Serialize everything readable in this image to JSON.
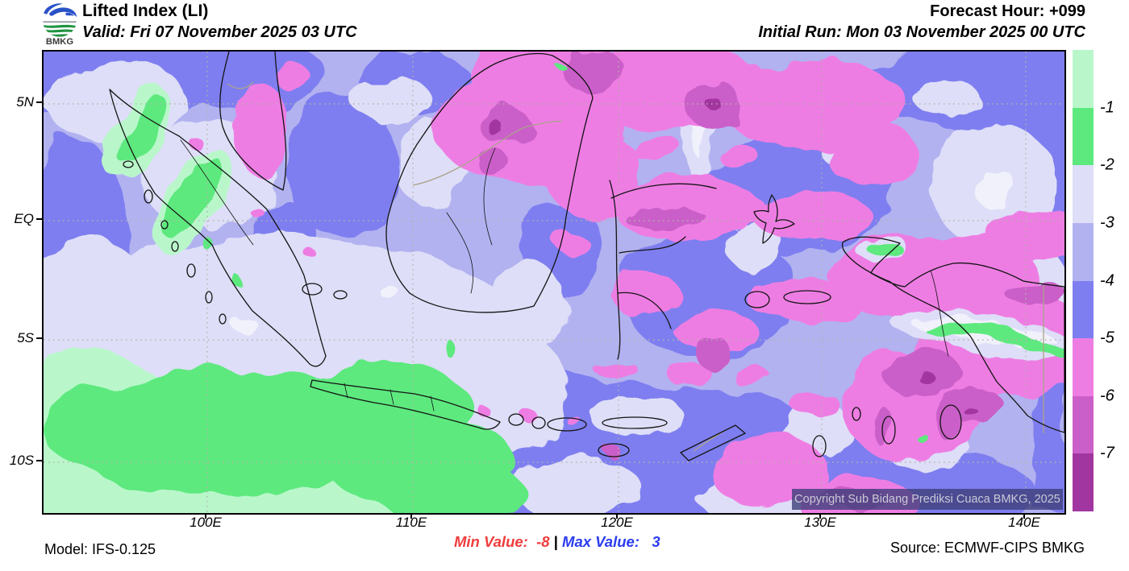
{
  "header": {
    "logo_text": "BMKG",
    "title": "Lifted Index (LI)",
    "valid_line": "Valid: Fri 07 November 2025 03 UTC",
    "forecast_hour": "Forecast Hour: +099",
    "initial_run": "Initial Run: Mon 03 November 2025 00 UTC"
  },
  "map": {
    "y_ticks": [
      "5N",
      "EQ",
      "5S",
      "10S"
    ],
    "x_ticks": [
      "100E",
      "110E",
      "120E",
      "130E",
      "140E"
    ],
    "copyright": "Copyright Sub Bidang Prediksi Cuaca BMKG, 2025"
  },
  "colorbar": {
    "tick_labels": [
      "-1",
      "-2",
      "-3",
      "-4",
      "-5",
      "-6",
      "-7"
    ],
    "segment_colors_top_to_bottom": [
      "#b9f7cb",
      "#5de97e",
      "#dedef8",
      "#b2b2f1",
      "#7e7ef0",
      "#ee7de3",
      "#cb5fc9",
      "#a236a0"
    ]
  },
  "footer": {
    "model": "Model: IFS-0.125",
    "min_label": "Min Value:",
    "min_value": "-8",
    "divider": "|",
    "max_label": "Max Value:",
    "max_value": "3",
    "source": "Source: ECMWF-CIPS BMKG"
  },
  "chart_data": {
    "type": "heatmap",
    "title": "Lifted Index (LI)",
    "legend_levels": [
      -1,
      -2,
      -3,
      -4,
      -5,
      -6,
      -7
    ],
    "legend_colors_top_to_bottom": [
      "#b9f7cb",
      "#5de97e",
      "#dedef8",
      "#b2b2f1",
      "#7e7ef0",
      "#ee7de3",
      "#cb5fc9",
      "#a236a0"
    ],
    "min_value": -8,
    "max_value": 3,
    "lon_ticks": [
      "100E",
      "110E",
      "120E",
      "130E",
      "140E"
    ],
    "lat_ticks": [
      "5N",
      "EQ",
      "5S",
      "10S"
    ]
  }
}
